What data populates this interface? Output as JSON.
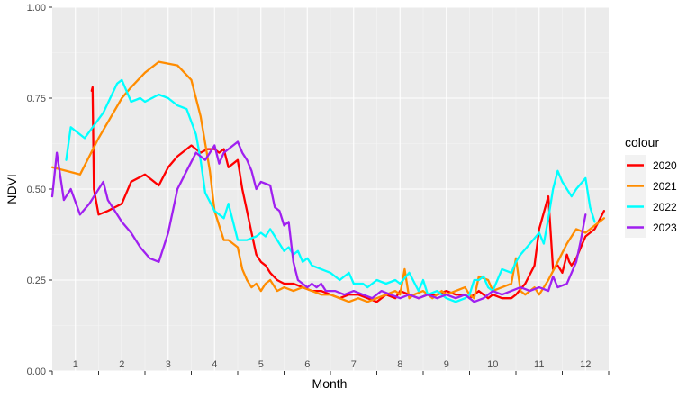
{
  "chart_data": {
    "type": "line",
    "xlabel": "Month",
    "ylabel": "NDVI",
    "xlim": [
      0.5,
      12.5
    ],
    "ylim": [
      0,
      1
    ],
    "month_ticks": [
      "1",
      "2",
      "3",
      "4",
      "5",
      "6",
      "7",
      "8",
      "9",
      "10",
      "11",
      "12"
    ],
    "y_ticks": [
      {
        "value": 0,
        "label": "0.00"
      },
      {
        "value": 0.25,
        "label": "0.25"
      },
      {
        "value": 0.5,
        "label": "0.50"
      },
      {
        "value": 0.75,
        "label": "0.75"
      },
      {
        "value": 1,
        "label": "1.00"
      }
    ],
    "panel_background": "#ebebeb",
    "grid": true,
    "legend": {
      "title": "colour",
      "position": "right"
    },
    "series": [
      {
        "name": "2020",
        "color": "#ff0000",
        "x": [
          1.35,
          1.37,
          1.4,
          1.5,
          1.7,
          2.0,
          2.2,
          2.5,
          2.8,
          3.0,
          3.2,
          3.5,
          3.7,
          3.85,
          4.0,
          4.1,
          4.2,
          4.3,
          4.5,
          4.6,
          4.7,
          4.8,
          4.9,
          5.0,
          5.1,
          5.2,
          5.35,
          5.5,
          5.7,
          5.9,
          6.1,
          6.3,
          6.5,
          6.7,
          6.9,
          7.1,
          7.3,
          7.5,
          7.7,
          7.9,
          8.0,
          8.2,
          8.4,
          8.6,
          8.8,
          9.0,
          9.2,
          9.4,
          9.5,
          9.6,
          9.7,
          9.8,
          9.9,
          10.0,
          10.2,
          10.4,
          10.5,
          10.7,
          10.9,
          11.0,
          11.2,
          11.3,
          11.4,
          11.5,
          11.6,
          11.65,
          11.7,
          11.8,
          11.9,
          12.0,
          12.2,
          12.4
        ],
        "y": [
          0.77,
          0.78,
          0.5,
          0.43,
          0.44,
          0.46,
          0.52,
          0.54,
          0.51,
          0.56,
          0.59,
          0.62,
          0.6,
          0.61,
          0.61,
          0.6,
          0.61,
          0.56,
          0.58,
          0.5,
          0.44,
          0.38,
          0.32,
          0.3,
          0.29,
          0.27,
          0.25,
          0.24,
          0.24,
          0.23,
          0.22,
          0.22,
          0.21,
          0.2,
          0.21,
          0.21,
          0.2,
          0.19,
          0.21,
          0.2,
          0.22,
          0.21,
          0.2,
          0.21,
          0.21,
          0.22,
          0.21,
          0.21,
          0.2,
          0.21,
          0.22,
          0.21,
          0.2,
          0.21,
          0.2,
          0.2,
          0.21,
          0.24,
          0.29,
          0.39,
          0.48,
          0.28,
          0.29,
          0.27,
          0.32,
          0.3,
          0.29,
          0.31,
          0.34,
          0.37,
          0.39,
          0.44
        ]
      },
      {
        "name": "2021",
        "color": "#ff8c00",
        "x": [
          0.5,
          1.1,
          1.5,
          2.0,
          2.2,
          2.5,
          2.8,
          3.2,
          3.5,
          3.7,
          3.9,
          4.0,
          4.1,
          4.2,
          4.3,
          4.5,
          4.6,
          4.7,
          4.8,
          4.9,
          5.0,
          5.1,
          5.2,
          5.35,
          5.5,
          5.7,
          5.9,
          6.1,
          6.3,
          6.5,
          6.7,
          6.9,
          7.1,
          7.3,
          7.5,
          7.7,
          7.9,
          8.0,
          8.1,
          8.2,
          8.3,
          8.5,
          8.7,
          8.9,
          9.0,
          9.2,
          9.4,
          9.5,
          9.6,
          9.7,
          9.9,
          10.0,
          10.2,
          10.4,
          10.5,
          10.6,
          10.7,
          10.8,
          10.9,
          11.0,
          11.2,
          11.4,
          11.6,
          11.8,
          12.0,
          12.2,
          12.4
        ],
        "y": [
          0.56,
          0.54,
          0.64,
          0.75,
          0.78,
          0.82,
          0.85,
          0.84,
          0.8,
          0.7,
          0.55,
          0.44,
          0.4,
          0.36,
          0.36,
          0.34,
          0.28,
          0.25,
          0.23,
          0.24,
          0.22,
          0.24,
          0.25,
          0.22,
          0.23,
          0.22,
          0.23,
          0.22,
          0.21,
          0.21,
          0.2,
          0.19,
          0.2,
          0.19,
          0.2,
          0.21,
          0.22,
          0.21,
          0.28,
          0.2,
          0.21,
          0.22,
          0.2,
          0.22,
          0.21,
          0.22,
          0.23,
          0.21,
          0.2,
          0.26,
          0.25,
          0.22,
          0.23,
          0.24,
          0.31,
          0.22,
          0.21,
          0.22,
          0.23,
          0.21,
          0.25,
          0.3,
          0.35,
          0.39,
          0.38,
          0.4,
          0.42
        ]
      },
      {
        "name": "2022",
        "color": "#00ffff",
        "x": [
          0.8,
          0.9,
          1.2,
          1.6,
          1.9,
          2.0,
          2.2,
          2.4,
          2.5,
          2.8,
          3.0,
          3.2,
          3.4,
          3.6,
          3.7,
          3.8,
          4.0,
          4.2,
          4.3,
          4.4,
          4.5,
          4.7,
          4.9,
          5.0,
          5.1,
          5.2,
          5.4,
          5.5,
          5.6,
          5.7,
          5.8,
          5.9,
          6.0,
          6.1,
          6.3,
          6.5,
          6.7,
          6.9,
          7.0,
          7.2,
          7.3,
          7.4,
          7.5,
          7.7,
          7.9,
          8.0,
          8.2,
          8.4,
          8.5,
          8.6,
          8.8,
          9.0,
          9.2,
          9.4,
          9.5,
          9.6,
          9.7,
          9.8,
          9.9,
          10.0,
          10.2,
          10.4,
          10.5,
          10.6,
          10.8,
          11.0,
          11.1,
          11.2,
          11.3,
          11.4,
          11.5,
          11.6,
          11.7,
          11.8,
          12.0,
          12.1,
          12.2
        ],
        "y": [
          0.58,
          0.67,
          0.64,
          0.71,
          0.79,
          0.8,
          0.74,
          0.75,
          0.74,
          0.76,
          0.75,
          0.73,
          0.72,
          0.65,
          0.58,
          0.49,
          0.44,
          0.42,
          0.46,
          0.41,
          0.36,
          0.36,
          0.37,
          0.38,
          0.37,
          0.39,
          0.35,
          0.33,
          0.34,
          0.32,
          0.33,
          0.3,
          0.31,
          0.29,
          0.28,
          0.27,
          0.25,
          0.27,
          0.24,
          0.24,
          0.23,
          0.24,
          0.25,
          0.24,
          0.25,
          0.24,
          0.27,
          0.22,
          0.25,
          0.21,
          0.22,
          0.2,
          0.19,
          0.2,
          0.21,
          0.25,
          0.25,
          0.26,
          0.23,
          0.22,
          0.28,
          0.27,
          0.3,
          0.32,
          0.35,
          0.38,
          0.35,
          0.42,
          0.5,
          0.55,
          0.52,
          0.5,
          0.48,
          0.5,
          0.53,
          0.45,
          0.41
        ]
      },
      {
        "name": "2023",
        "color": "#a020f0",
        "x": [
          0.5,
          0.6,
          0.75,
          0.9,
          1.1,
          1.3,
          1.6,
          1.7,
          1.8,
          2.0,
          2.2,
          2.4,
          2.6,
          2.8,
          3.0,
          3.2,
          3.4,
          3.6,
          3.8,
          3.9,
          4.0,
          4.1,
          4.2,
          4.3,
          4.4,
          4.5,
          4.6,
          4.7,
          4.8,
          4.9,
          5.0,
          5.2,
          5.3,
          5.4,
          5.5,
          5.6,
          5.7,
          5.8,
          5.9,
          6.0,
          6.1,
          6.2,
          6.3,
          6.4,
          6.6,
          6.8,
          7.0,
          7.2,
          7.4,
          7.6,
          7.8,
          8.0,
          8.2,
          8.4,
          8.6,
          8.8,
          9.0,
          9.2,
          9.4,
          9.6,
          9.8,
          10.0,
          10.2,
          10.4,
          10.6,
          10.8,
          11.0,
          11.2,
          11.3,
          11.4,
          11.6,
          11.8,
          11.9,
          12.0
        ],
        "y": [
          0.48,
          0.6,
          0.47,
          0.5,
          0.43,
          0.46,
          0.52,
          0.47,
          0.45,
          0.41,
          0.38,
          0.34,
          0.31,
          0.3,
          0.38,
          0.5,
          0.55,
          0.6,
          0.58,
          0.6,
          0.62,
          0.57,
          0.6,
          0.61,
          0.62,
          0.63,
          0.6,
          0.58,
          0.55,
          0.5,
          0.52,
          0.51,
          0.45,
          0.44,
          0.4,
          0.41,
          0.3,
          0.25,
          0.24,
          0.23,
          0.24,
          0.23,
          0.24,
          0.22,
          0.22,
          0.21,
          0.22,
          0.21,
          0.2,
          0.22,
          0.21,
          0.2,
          0.21,
          0.2,
          0.21,
          0.2,
          0.21,
          0.2,
          0.21,
          0.19,
          0.2,
          0.22,
          0.21,
          0.22,
          0.23,
          0.22,
          0.23,
          0.22,
          0.26,
          0.23,
          0.24,
          0.3,
          0.36,
          0.43
        ]
      }
    ]
  }
}
